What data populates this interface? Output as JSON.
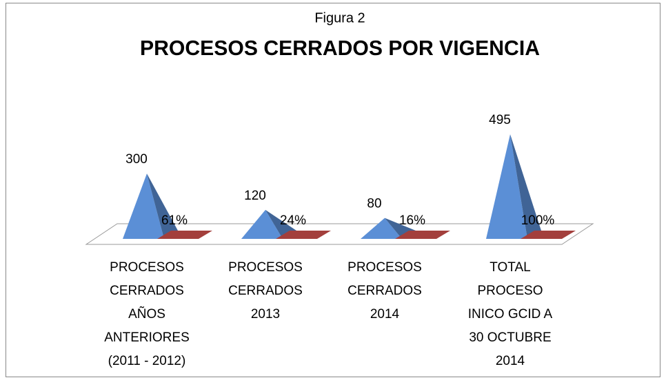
{
  "chart_data": {
    "type": "pyramid3d",
    "subtitle": "Figura 2",
    "title": "PROCESOS CERRADOS POR VIGENCIA",
    "categories": [
      "PROCESOS CERRADOS AÑOS ANTERIORES (2011 - 2012)",
      "PROCESOS CERRADOS 2013",
      "PROCESOS CERRADOS 2014",
      "TOTAL PROCESO INICO GCID A 30 OCTUBRE 2014"
    ],
    "series": [
      {
        "color": "#5b8fd6",
        "values": [
          300,
          120,
          80,
          495
        ]
      },
      {
        "color": "#a33f3c",
        "values": [
          0.61,
          0.24,
          0.16,
          1.0
        ],
        "value_labels": [
          "61%",
          "24%",
          "16%",
          "100%"
        ]
      }
    ]
  }
}
